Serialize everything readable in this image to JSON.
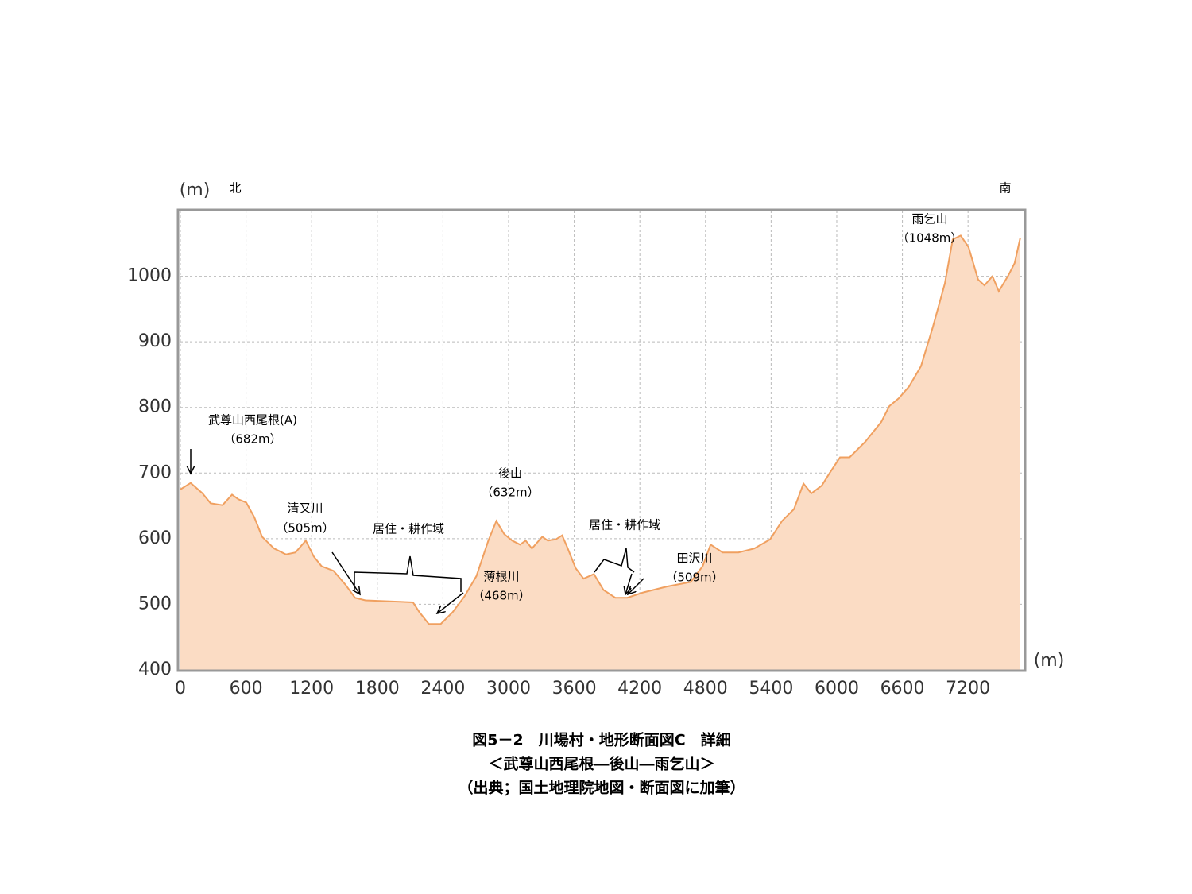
{
  "chart_data": {
    "type": "area",
    "y_label": "(m)",
    "x_label": "(m)",
    "north_label": "北",
    "south_label": "南",
    "title_lines": [
      "図5－2　川場村・地形断面図C　詳細",
      "＜武尊山西尾根―後山―雨乞山＞",
      "（出典；国土地理院地図・断面図に加筆）"
    ],
    "annotations": [
      "武尊山西尾根(A)",
      "（682m）",
      "清又川",
      "（505m）",
      "居住・耕作域",
      "薄根川",
      "（468m）",
      "後山",
      "（632m）",
      "居住・耕作域",
      "田沢川",
      "（509m）",
      "雨乞山",
      "（1048m）"
    ],
    "x": [
      0,
      94,
      203,
      276,
      385,
      472,
      530,
      602,
      675,
      747,
      856,
      965,
      1052,
      1146,
      1219,
      1291,
      1400,
      1509,
      1596,
      1691,
      2126,
      2184,
      2271,
      2380,
      2489,
      2597,
      2706,
      2815,
      2888,
      2960,
      3033,
      3105,
      3156,
      3214,
      3308,
      3359,
      3432,
      3490,
      3541,
      3613,
      3686,
      3780,
      3867,
      3976,
      4085,
      4230,
      4447,
      4665,
      4774,
      4847,
      4956,
      5101,
      5246,
      5391,
      5500,
      5609,
      5696,
      5768,
      5863,
      5935,
      6030,
      6117,
      6262,
      6407,
      6480,
      6567,
      6661,
      6770,
      6879,
      6988,
      7060,
      7133,
      7205,
      7292,
      7350,
      7423,
      7481,
      7568,
      7626,
      7677
    ],
    "values": [
      675,
      685,
      669,
      654,
      651,
      667,
      660,
      655,
      633,
      603,
      585,
      576,
      579,
      597,
      573,
      558,
      551,
      530,
      510,
      506,
      503,
      488,
      470,
      470,
      488,
      512,
      543,
      597,
      627,
      607,
      597,
      591,
      597,
      585,
      603,
      597,
      599,
      605,
      585,
      555,
      539,
      546,
      522,
      510,
      510,
      518,
      527,
      534,
      558,
      591,
      579,
      579,
      585,
      599,
      627,
      645,
      684,
      669,
      681,
      700,
      724,
      724,
      748,
      778,
      802,
      814,
      832,
      863,
      923,
      989,
      1056,
      1062,
      1044,
      995,
      986,
      1000,
      977,
      1001,
      1020,
      1058
    ],
    "color": "#f0a060",
    "fill": "#fbdcc4",
    "xlim": [
      0,
      7700
    ],
    "xticks": [
      0,
      600,
      1200,
      1800,
      2400,
      3000,
      3600,
      4200,
      4800,
      5400,
      6000,
      6600,
      7200
    ],
    "ylim": [
      400,
      1100
    ],
    "yticks": [
      400,
      500,
      600,
      700,
      800,
      900,
      1000
    ],
    "grid": true
  }
}
